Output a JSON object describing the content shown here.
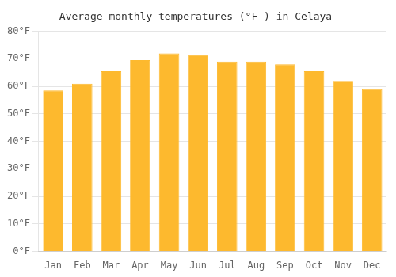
{
  "chart_data": {
    "type": "bar",
    "title": "Average monthly temperatures (°F ) in Celaya",
    "categories": [
      "Jan",
      "Feb",
      "Mar",
      "Apr",
      "May",
      "Jun",
      "Jul",
      "Aug",
      "Sep",
      "Oct",
      "Nov",
      "Dec"
    ],
    "values": [
      58.5,
      61.0,
      65.5,
      69.5,
      72.0,
      71.5,
      69.0,
      69.0,
      68.0,
      65.5,
      62.0,
      59.0
    ],
    "color": "#FDB92E",
    "ylim": [
      0,
      80
    ],
    "yticks": [
      {
        "value": 0,
        "label": "0°F"
      },
      {
        "value": 10,
        "label": "10°F"
      },
      {
        "value": 20,
        "label": "20°F"
      },
      {
        "value": 30,
        "label": "30°F"
      },
      {
        "value": 40,
        "label": "40°F"
      },
      {
        "value": 50,
        "label": "50°F"
      },
      {
        "value": 60,
        "label": "60°F"
      },
      {
        "value": 70,
        "label": "70°F"
      },
      {
        "value": 80,
        "label": "80°F"
      }
    ],
    "grid": true
  }
}
